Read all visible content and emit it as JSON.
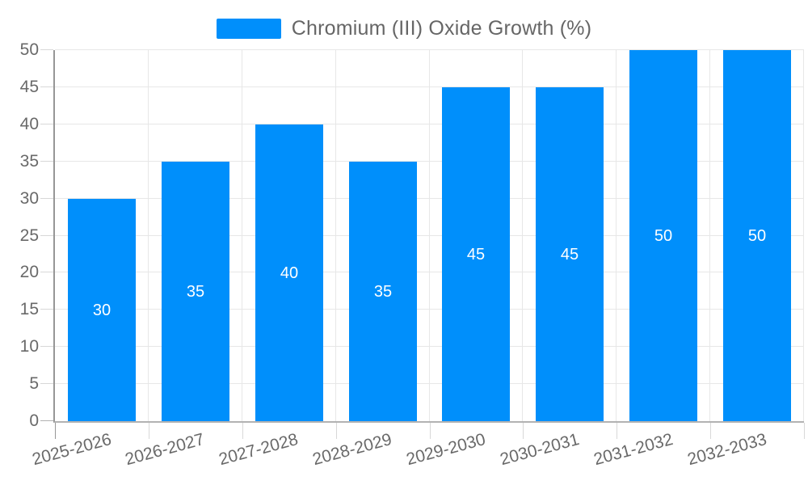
{
  "chart_data": {
    "type": "bar",
    "title": "Chromium (III) Oxide Growth (%)",
    "legend_position": "top",
    "categories": [
      "2025-2026",
      "2026-2027",
      "2027-2028",
      "2028-2029",
      "2029-2030",
      "2030-2031",
      "2031-2032",
      "2032-2033"
    ],
    "values": [
      30,
      35,
      40,
      35,
      45,
      45,
      50,
      50
    ],
    "xlabel": "",
    "ylabel": "",
    "ylim": [
      0,
      50
    ],
    "ytick_step": 5,
    "yticks": [
      0,
      5,
      10,
      15,
      20,
      25,
      30,
      35,
      40,
      45,
      50
    ],
    "grid": true,
    "bar_color": "#008FFB",
    "value_label_color": "#ffffff"
  },
  "colors": {
    "background": "#ffffff",
    "bar": "#008FFB",
    "grid": "#e7e7e7",
    "tick": "#d8d8d8",
    "y_axis_line": "#979797",
    "x_axis_line": "#b2b2b2",
    "axis_label": "#696969",
    "title_text": "#666666",
    "value_label": "#ffffff"
  }
}
